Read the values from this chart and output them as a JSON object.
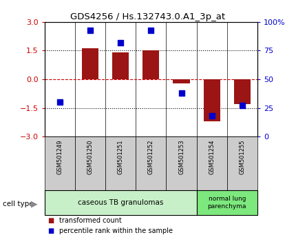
{
  "title": "GDS4256 / Hs.132743.0.A1_3p_at",
  "samples": [
    "GSM501249",
    "GSM501250",
    "GSM501251",
    "GSM501252",
    "GSM501253",
    "GSM501254",
    "GSM501255"
  ],
  "red_values": [
    0.0,
    1.62,
    1.4,
    1.5,
    -0.2,
    -2.2,
    -1.3
  ],
  "blue_values": [
    30,
    93,
    82,
    93,
    38,
    18,
    27
  ],
  "ylim_left": [
    -3,
    3
  ],
  "ylim_right": [
    0,
    100
  ],
  "left_yticks": [
    -3,
    -1.5,
    0,
    1.5,
    3
  ],
  "right_yticks": [
    0,
    25,
    50,
    75,
    100
  ],
  "right_yticklabels": [
    "0",
    "25",
    "50",
    "75",
    "100%"
  ],
  "group1_label": "caseous TB granulomas",
  "group1_count": 5,
  "group2_label": "normal lung\nparenchyma",
  "group2_count": 2,
  "cell_type_label": "cell type",
  "legend_red": "transformed count",
  "legend_blue": "percentile rank within the sample",
  "bar_color": "#9b1515",
  "blue_color": "#0000cc",
  "red_line_color": "#cc0000",
  "tick_color_left": "#cc0000",
  "tick_color_right": "#0000cc",
  "bar_width": 0.55,
  "blue_marker_size": 6,
  "bg_color": "#ffffff",
  "sample_bg": "#cccccc",
  "group1_color": "#c8f0c8",
  "group2_color": "#7de87d"
}
